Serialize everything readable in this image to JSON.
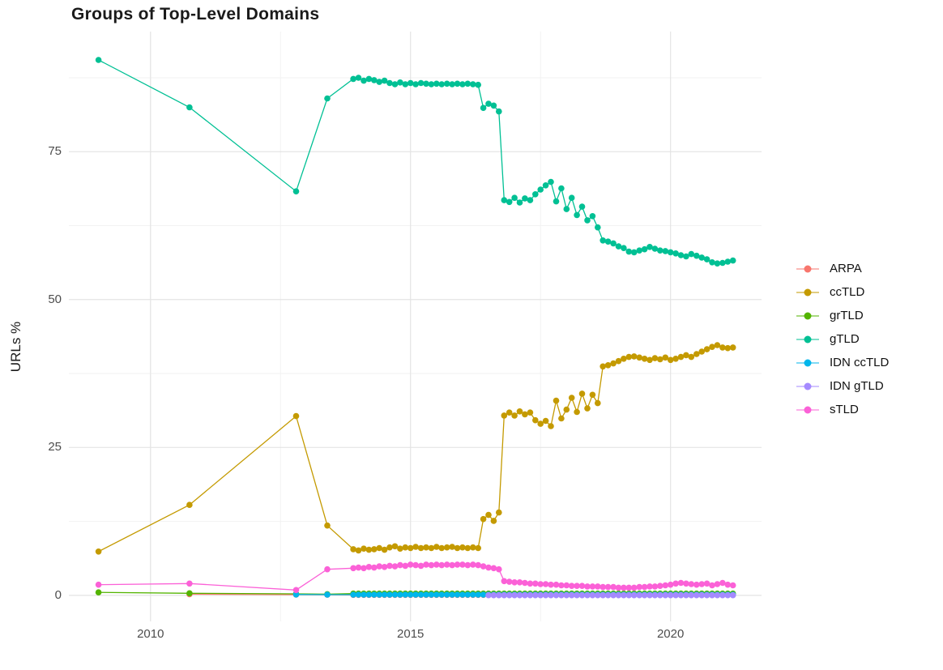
{
  "chart_data": {
    "type": "line",
    "title": "Groups of Top-Level Domains",
    "xlabel": "",
    "ylabel": "URLs %",
    "x_ticks": [
      2010,
      2015,
      2020
    ],
    "x_tick_labels": [
      "2010",
      "2015",
      "2020"
    ],
    "y_ticks": [
      0,
      25,
      50,
      75
    ],
    "y_tick_labels": [
      "0",
      "25",
      "50",
      "75"
    ],
    "x_minor_gridlines": [
      2012.5,
      2017.5
    ],
    "y_minor_gridlines": [
      12.5,
      37.5,
      62.5,
      87.5
    ],
    "xlim": [
      2008.43,
      2021.75
    ],
    "ylim": [
      -4.4,
      95.3
    ],
    "grid": true,
    "legend_position": "right",
    "colors": {
      "major_grid": "#e4e4e4",
      "minor_grid": "#f2f2f2",
      "axis_text": "#4d4d4d",
      "title_text": "#1a1a1a"
    },
    "dense_x": {
      "from": 2013.9,
      "step": 0.1,
      "count": 74
    },
    "series": [
      {
        "name": "ARPA",
        "color": "#F8766D",
        "early": [
          [
            2010.75,
            0.2
          ],
          [
            2012.8,
            0.12
          ],
          [
            2013.4,
            0.1
          ]
        ],
        "dense_constant": 0.08
      },
      {
        "name": "ccTLD",
        "color": "#C49A00",
        "early": [
          [
            2009.0,
            7.4
          ],
          [
            2010.75,
            15.3
          ],
          [
            2012.8,
            30.3
          ],
          [
            2013.4,
            11.8
          ]
        ],
        "dense_values": [
          7.8,
          7.6,
          7.9,
          7.7,
          7.8,
          8.0,
          7.7,
          8.1,
          8.3,
          7.9,
          8.1,
          8.0,
          8.2,
          8.0,
          8.1,
          8.0,
          8.2,
          8.0,
          8.1,
          8.2,
          8.0,
          8.1,
          8.0,
          8.1,
          8.0,
          12.9,
          13.6,
          12.6,
          14.0,
          30.4,
          30.9,
          30.4,
          31.1,
          30.6,
          30.9,
          29.6,
          29.0,
          29.5,
          28.6,
          32.9,
          29.9,
          31.4,
          33.4,
          31.0,
          34.1,
          31.6,
          33.9,
          32.5,
          38.7,
          38.9,
          39.2,
          39.6,
          40.0,
          40.3,
          40.4,
          40.2,
          40.0,
          39.8,
          40.1,
          39.9,
          40.2,
          39.8,
          40.0,
          40.3,
          40.6,
          40.3,
          40.8,
          41.2,
          41.6,
          42.0,
          42.3,
          41.9,
          41.8,
          41.9
        ]
      },
      {
        "name": "grTLD",
        "color": "#53B400",
        "early": [
          [
            2009.0,
            0.5
          ],
          [
            2010.75,
            0.35
          ],
          [
            2012.8,
            0.25
          ],
          [
            2013.4,
            0.2
          ]
        ],
        "dense_constant": 0.3
      },
      {
        "name": "gTLD",
        "color": "#00C094",
        "early": [
          [
            2009.0,
            90.5
          ],
          [
            2010.75,
            82.5
          ],
          [
            2012.8,
            68.3
          ],
          [
            2013.4,
            84.0
          ]
        ],
        "dense_values": [
          87.3,
          87.5,
          87.0,
          87.3,
          87.1,
          86.8,
          87.0,
          86.6,
          86.4,
          86.7,
          86.4,
          86.6,
          86.4,
          86.6,
          86.5,
          86.4,
          86.5,
          86.4,
          86.5,
          86.4,
          86.5,
          86.4,
          86.5,
          86.4,
          86.3,
          82.4,
          83.1,
          82.8,
          81.8,
          66.8,
          66.5,
          67.2,
          66.4,
          67.1,
          66.8,
          67.8,
          68.6,
          69.3,
          69.9,
          66.6,
          68.8,
          65.3,
          67.2,
          64.3,
          65.7,
          63.4,
          64.1,
          62.2,
          60.0,
          59.8,
          59.5,
          59.0,
          58.7,
          58.1,
          58.0,
          58.3,
          58.5,
          58.9,
          58.6,
          58.3,
          58.2,
          58.0,
          57.8,
          57.5,
          57.3,
          57.7,
          57.4,
          57.1,
          56.8,
          56.3,
          56.1,
          56.2,
          56.4,
          56.6
        ]
      },
      {
        "name": "IDN ccTLD",
        "color": "#00B6EB",
        "early": [
          [
            2012.8,
            0.15
          ],
          [
            2013.4,
            0.12
          ]
        ],
        "dense_constant": 0.12
      },
      {
        "name": "IDN gTLD",
        "color": "#A58AFF",
        "early": [],
        "dense_start": 2016.5,
        "dense_constant": 0.02
      },
      {
        "name": "sTLD",
        "color": "#FB61D7",
        "early": [
          [
            2009.0,
            1.8
          ],
          [
            2010.75,
            2.0
          ],
          [
            2012.8,
            0.9
          ],
          [
            2013.4,
            4.4
          ]
        ],
        "dense_values": [
          4.6,
          4.7,
          4.6,
          4.8,
          4.7,
          4.9,
          4.8,
          5.0,
          4.9,
          5.1,
          5.0,
          5.2,
          5.1,
          5.0,
          5.2,
          5.1,
          5.2,
          5.1,
          5.2,
          5.1,
          5.2,
          5.2,
          5.1,
          5.2,
          5.1,
          4.9,
          4.7,
          4.6,
          4.4,
          2.4,
          2.3,
          2.2,
          2.2,
          2.1,
          2.0,
          2.0,
          1.9,
          1.9,
          1.8,
          1.8,
          1.7,
          1.7,
          1.6,
          1.6,
          1.6,
          1.5,
          1.5,
          1.5,
          1.4,
          1.4,
          1.4,
          1.3,
          1.3,
          1.3,
          1.3,
          1.4,
          1.4,
          1.5,
          1.5,
          1.6,
          1.7,
          1.8,
          2.0,
          2.1,
          2.0,
          1.9,
          1.8,
          1.9,
          2.0,
          1.7,
          1.9,
          2.1,
          1.8,
          1.7
        ]
      }
    ]
  }
}
